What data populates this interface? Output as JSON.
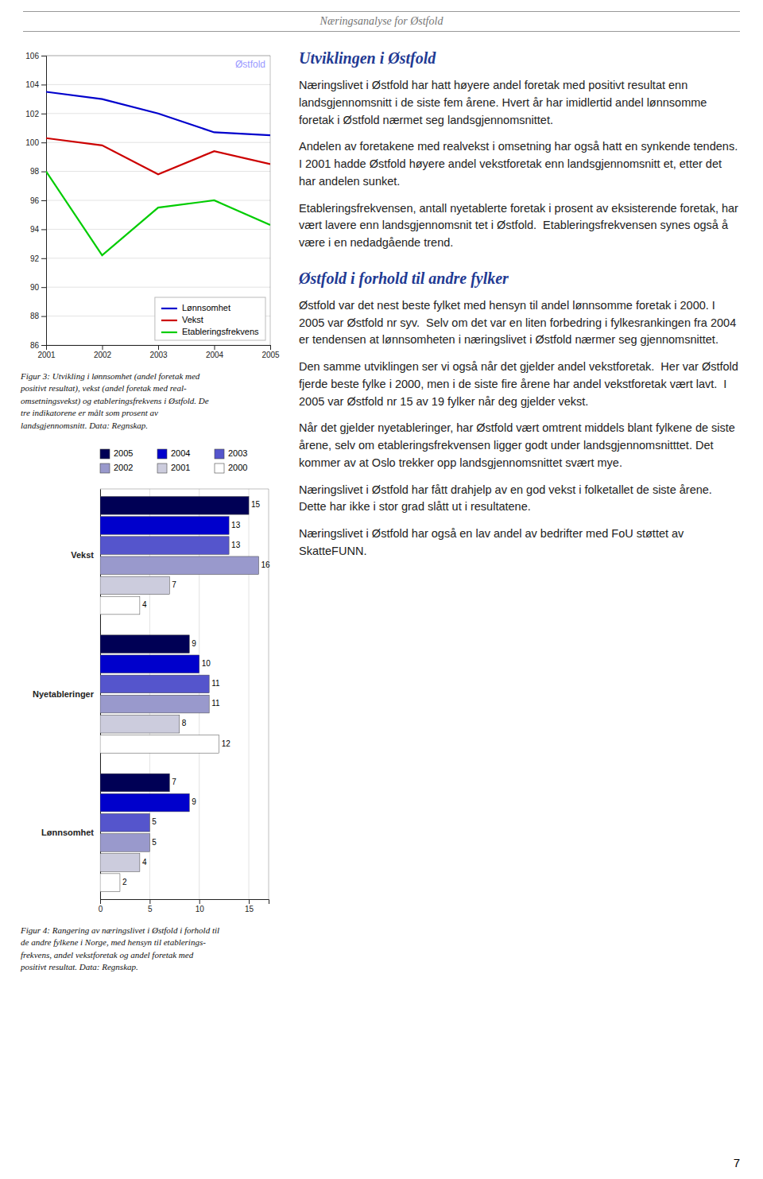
{
  "page_header": "Næringsanalyse for Østfold",
  "page_number": "7",
  "chart_data": [
    {
      "type": "line",
      "x": [
        2001,
        2002,
        2003,
        2004,
        2005
      ],
      "xlim": [
        2001,
        2005
      ],
      "xticks": [
        2001,
        2002,
        2003,
        2004,
        2005
      ],
      "ylim": [
        86,
        106
      ],
      "yticks": [
        86,
        88,
        90,
        92,
        94,
        96,
        98,
        100,
        102,
        104,
        106
      ],
      "grid": true,
      "legend": "lower right",
      "series": [
        {
          "name": "Lønnsomhet",
          "color": "#0000cc",
          "values": [
            103.5,
            103.0,
            102.0,
            100.7,
            100.5
          ]
        },
        {
          "name": "Vekst",
          "color": "#cc0000",
          "values": [
            100.3,
            99.8,
            97.8,
            99.4,
            98.5
          ]
        },
        {
          "name": "Etableringsfrekvens",
          "color": "#00cc00",
          "values": [
            98.0,
            92.2,
            95.5,
            96.0,
            94.3
          ]
        }
      ],
      "annotations": [
        {
          "text": "Østfold",
          "color": "#9999ff"
        }
      ],
      "caption": "Figur 3: Utvikling i lønnsomhet (andel foretak med\npositivt resultat), vekst (andel foretak med real-\nomsetningsvekst) og etableringsfrekvens i Østfold.  De\ntre indikatorene er målt som prosent av\nlandsgjennomsnitt.  Data: Regnskap."
    },
    {
      "type": "bar",
      "orientation": "horizontal",
      "categories": [
        "Vekst",
        "Nyetableringer",
        "Lønnsomhet"
      ],
      "series": [
        {
          "name": "2005",
          "color": "#000055",
          "values": [
            15,
            9,
            7
          ]
        },
        {
          "name": "2004",
          "color": "#0000cc",
          "values": [
            13,
            10,
            9
          ]
        },
        {
          "name": "2003",
          "color": "#5555cc",
          "values": [
            13,
            11,
            5
          ]
        },
        {
          "name": "2002",
          "color": "#9999cc",
          "values": [
            16,
            11,
            5
          ]
        },
        {
          "name": "2001",
          "color": "#ccccdd",
          "values": [
            7,
            8,
            4
          ]
        },
        {
          "name": "2000",
          "color": "#ffffff",
          "values": [
            4,
            12,
            2
          ]
        }
      ],
      "xlim": [
        0,
        17
      ],
      "xticks": [
        0,
        5,
        10,
        15
      ],
      "grid": true,
      "legend": "top",
      "data_labels": true,
      "caption": "Figur 4: Rangering av næringslivet i Østfold i forhold til\nde andre fylkene i Norge, med hensyn til etablerings-\nfrekvens, andel vekstforetak og andel foretak med\npositivt resultat.  Data: Regnskap."
    }
  ],
  "sections": [
    {
      "title": "Utviklingen i Østfold",
      "paragraphs": [
        "Næringslivet i Østfold har hatt høyere andel foretak med positivt resultat enn landsgjennomsnitt i de siste fem årene. Hvert år har imidlertid andel lønnsomme foretak i Østfold nærmet seg landsgjennomsnittet.",
        "Andelen av foretakene med realvekst i omsetning har også hatt en synkende tendens.  I 2001 hadde Østfold høyere andel vekstforetak enn landsgjennomsnitt et, etter det har andelen sunket.",
        "Etableringsfrekvensen, antall nyetablerte foretak i prosent av eksisterende foretak, har vært lavere enn landsgjennomsnit tet i Østfold.  Etableringsfrekvensen synes også å være i en nedadgående trend."
      ]
    },
    {
      "title": "Østfold i forhold til andre fylker",
      "paragraphs": [
        "Østfold var det nest beste fylket med hensyn til andel lønnsomme foretak i 2000. I 2005 var Østfold nr syv.  Selv om det var en liten forbedring i fylkesrankingen fra 2004 er tendensen at lønnsomheten i næringslivet i Østfold nærmer seg gjennomsnittet.",
        "Den samme utviklingen ser vi også når det gjelder andel vekstforetak.  Her var Østfold fjerde beste fylke i 2000, men i de siste fire årene har andel vekstforetak vært lavt.  I 2005 var Østfold nr 15 av 19 fylker når deg gjelder vekst.",
        "Når det gjelder nyetableringer, har Østfold vært omtrent middels blant fylkene de siste årene, selv om etableringsfrekvensen ligger godt under landsgjennomsnitttet. Det kommer av at Oslo trekker opp landsgjennomsnittet svært mye.",
        "Næringslivet i Østfold har fått drahjelp av en god vekst i folketallet de siste årene. Dette har ikke i stor grad slått ut i resultatene.",
        "Næringslivet i Østfold har også en lav andel av bedrifter med FoU støttet av SkatteFUNN."
      ]
    }
  ]
}
